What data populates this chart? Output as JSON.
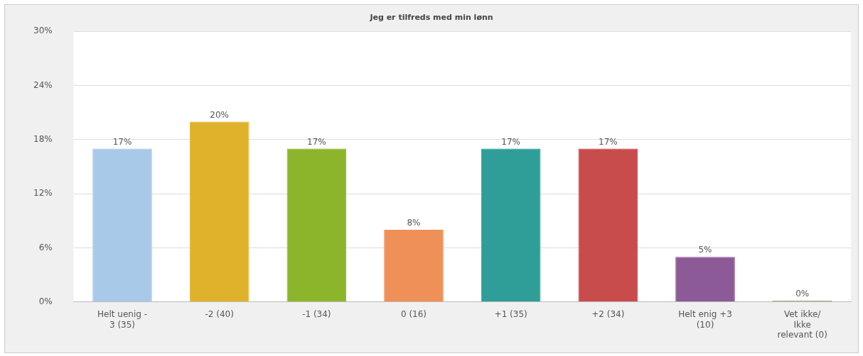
{
  "chart_data": {
    "type": "bar",
    "title": "Jeg er tilfreds med min lønn",
    "categories": [
      "Helt uenig - 3 (35)",
      "-2 (40)",
      "-1 (34)",
      "0 (16)",
      "+1 (35)",
      "+2 (34)",
      "Helt enig +3 (10)",
      "Vet ikke/ Ikke relevant (0)"
    ],
    "values": [
      17,
      20,
      17,
      8,
      17,
      17,
      5,
      0
    ],
    "colors": [
      "#a9c9e8",
      "#e0b22c",
      "#8db52c",
      "#ef9058",
      "#2f9e98",
      "#c94c4c",
      "#8c5a96",
      "#8a9a70"
    ],
    "value_labels": [
      "17%",
      "20%",
      "17%",
      "8%",
      "17%",
      "17%",
      "5%",
      "0%"
    ],
    "ylim": [
      0,
      30
    ],
    "yticks": [
      {
        "value": 0,
        "label": "0%"
      },
      {
        "value": 6,
        "label": "6%"
      },
      {
        "value": 12,
        "label": "12%"
      },
      {
        "value": 18,
        "label": "18%"
      },
      {
        "value": 24,
        "label": "24%"
      },
      {
        "value": 30,
        "label": "30%"
      }
    ],
    "grid": "y",
    "legend": false
  }
}
